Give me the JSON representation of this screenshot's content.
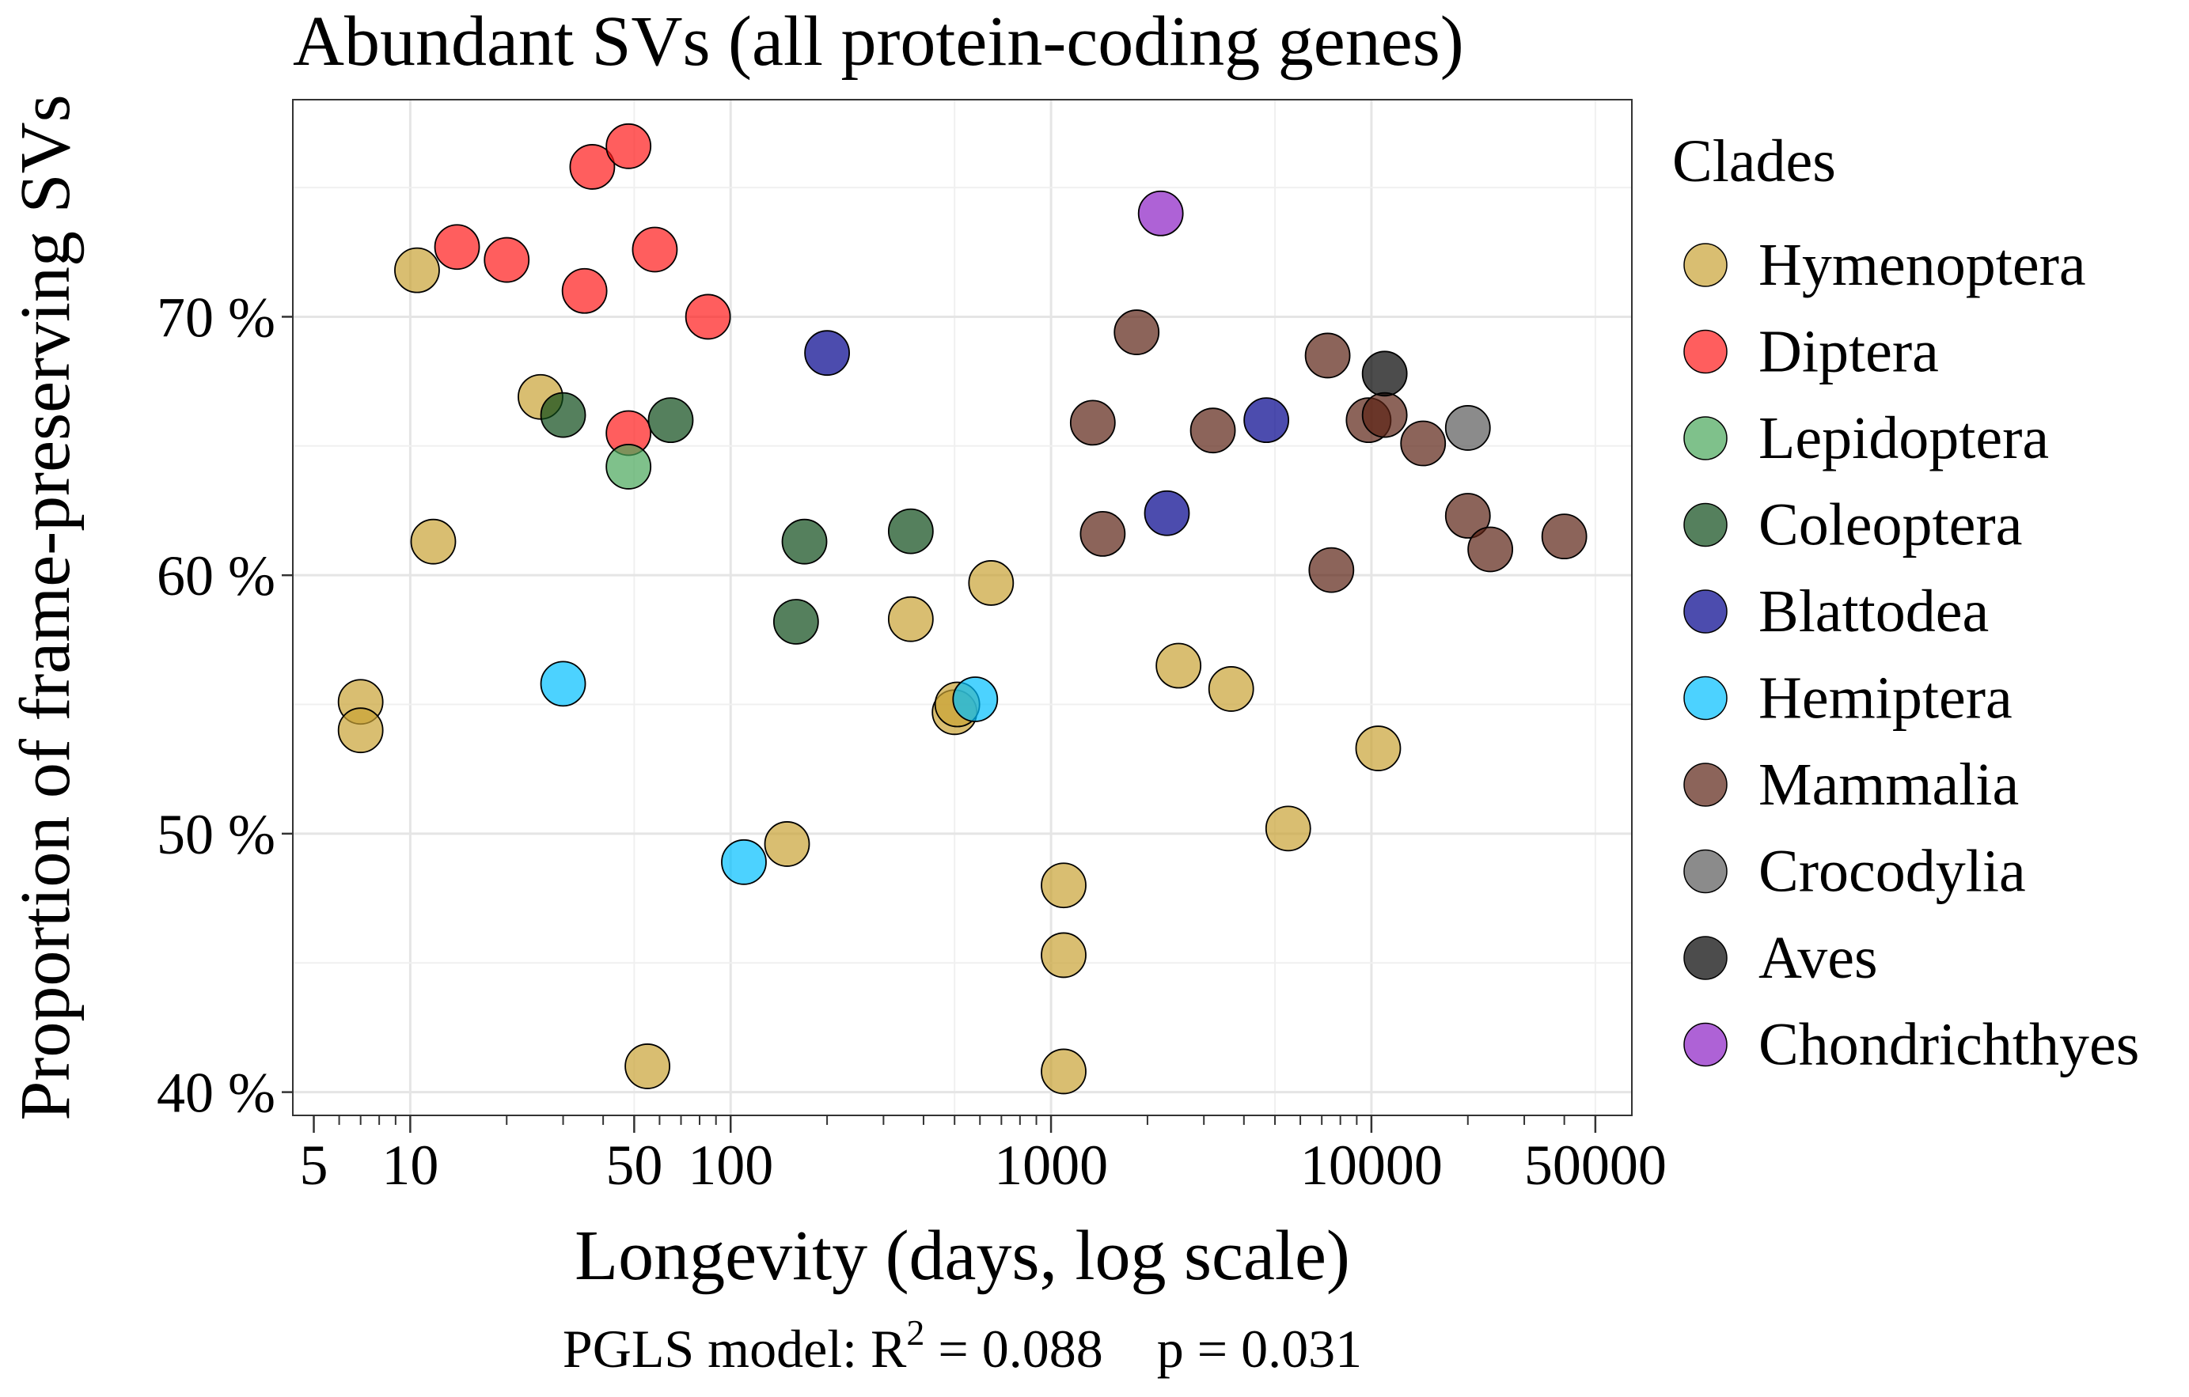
{
  "chart_data": {
    "type": "scatter",
    "title": "Abundant SVs (all protein-coding genes)",
    "xlabel": "Longevity (days, log scale)",
    "ylabel": "Proportion of frame-preserving SVs",
    "x_scale": "log10",
    "xlim": [
      4.3,
      65000
    ],
    "ylim": [
      39.1,
      78.4
    ],
    "x_ticks": [
      5,
      10,
      50,
      100,
      1000,
      10000,
      50000
    ],
    "x_tick_labels": [
      "5",
      "10",
      "50",
      "100",
      "1000",
      "10000",
      "50000"
    ],
    "x_minor_ticks": [
      6,
      7,
      8,
      9,
      20,
      30,
      40,
      60,
      70,
      80,
      90,
      200,
      300,
      400,
      500,
      600,
      700,
      800,
      900,
      2000,
      3000,
      4000,
      5000,
      6000,
      7000,
      8000,
      9000,
      20000,
      30000,
      40000
    ],
    "y_ticks": [
      40,
      50,
      60,
      70
    ],
    "y_tick_labels": [
      "40 %",
      "50 %",
      "60 %",
      "70 %"
    ],
    "grid": true,
    "legend_title": "Clades",
    "legend_position": "right",
    "annotation": {
      "prefix": "PGLS model: R",
      "superscript": "2",
      "suffix": " = 0.088    p = 0.031"
    },
    "series": [
      {
        "name": "Hymenoptera",
        "color": "#C9A234",
        "points": [
          [
            7,
            55.1
          ],
          [
            7,
            54.0
          ],
          [
            10.5,
            71.8
          ],
          [
            11.8,
            61.3
          ],
          [
            25.5,
            66.9
          ],
          [
            55,
            41.0
          ],
          [
            150,
            49.6
          ],
          [
            365,
            58.3
          ],
          [
            500,
            54.7
          ],
          [
            510,
            55.0
          ],
          [
            650,
            59.7
          ],
          [
            1095,
            48.0
          ],
          [
            1095,
            45.3
          ],
          [
            1095,
            40.8
          ],
          [
            2500,
            56.5
          ],
          [
            3650,
            55.6
          ],
          [
            5500,
            50.2
          ],
          [
            10500,
            53.3
          ]
        ]
      },
      {
        "name": "Diptera",
        "color": "#FF1A1A",
        "points": [
          [
            14,
            72.7
          ],
          [
            20,
            72.2
          ],
          [
            35,
            71.0
          ],
          [
            37,
            75.8
          ],
          [
            48,
            76.6
          ],
          [
            48,
            65.5
          ],
          [
            58,
            72.6
          ],
          [
            85,
            70.0
          ]
        ]
      },
      {
        "name": "Lepidoptera",
        "color": "#48A75A",
        "points": [
          [
            48,
            64.2
          ]
        ]
      },
      {
        "name": "Coleoptera",
        "color": "#0D4A18",
        "points": [
          [
            30,
            66.2
          ],
          [
            65,
            66.0
          ],
          [
            160,
            58.2
          ],
          [
            170,
            61.3
          ],
          [
            365,
            61.7
          ]
        ]
      },
      {
        "name": "Blattodea",
        "color": "#00008B",
        "points": [
          [
            200,
            68.6
          ],
          [
            2300,
            62.4
          ],
          [
            4700,
            66.0
          ]
        ]
      },
      {
        "name": "Hemiptera",
        "color": "#00BFFF",
        "points": [
          [
            30,
            55.8
          ],
          [
            110,
            48.9
          ],
          [
            580,
            55.2
          ]
        ]
      },
      {
        "name": "Mammalia",
        "color": "#5B2214",
        "points": [
          [
            1350,
            65.9
          ],
          [
            1450,
            61.6
          ],
          [
            1850,
            69.4
          ],
          [
            3200,
            65.6
          ],
          [
            7300,
            68.5
          ],
          [
            7500,
            60.2
          ],
          [
            9800,
            66.0
          ],
          [
            11000,
            66.2
          ],
          [
            14500,
            65.1
          ],
          [
            20000,
            62.3
          ],
          [
            23500,
            61.0
          ],
          [
            40000,
            61.5
          ]
        ]
      },
      {
        "name": "Crocodylia",
        "color": "#5A5A5A",
        "points": [
          [
            20000,
            65.7
          ]
        ]
      },
      {
        "name": "Aves",
        "color": "#000000",
        "points": [
          [
            11000,
            67.8
          ]
        ]
      },
      {
        "name": "Chondrichthyes",
        "color": "#8B1FC4",
        "points": [
          [
            2200,
            74.0
          ]
        ]
      }
    ]
  }
}
